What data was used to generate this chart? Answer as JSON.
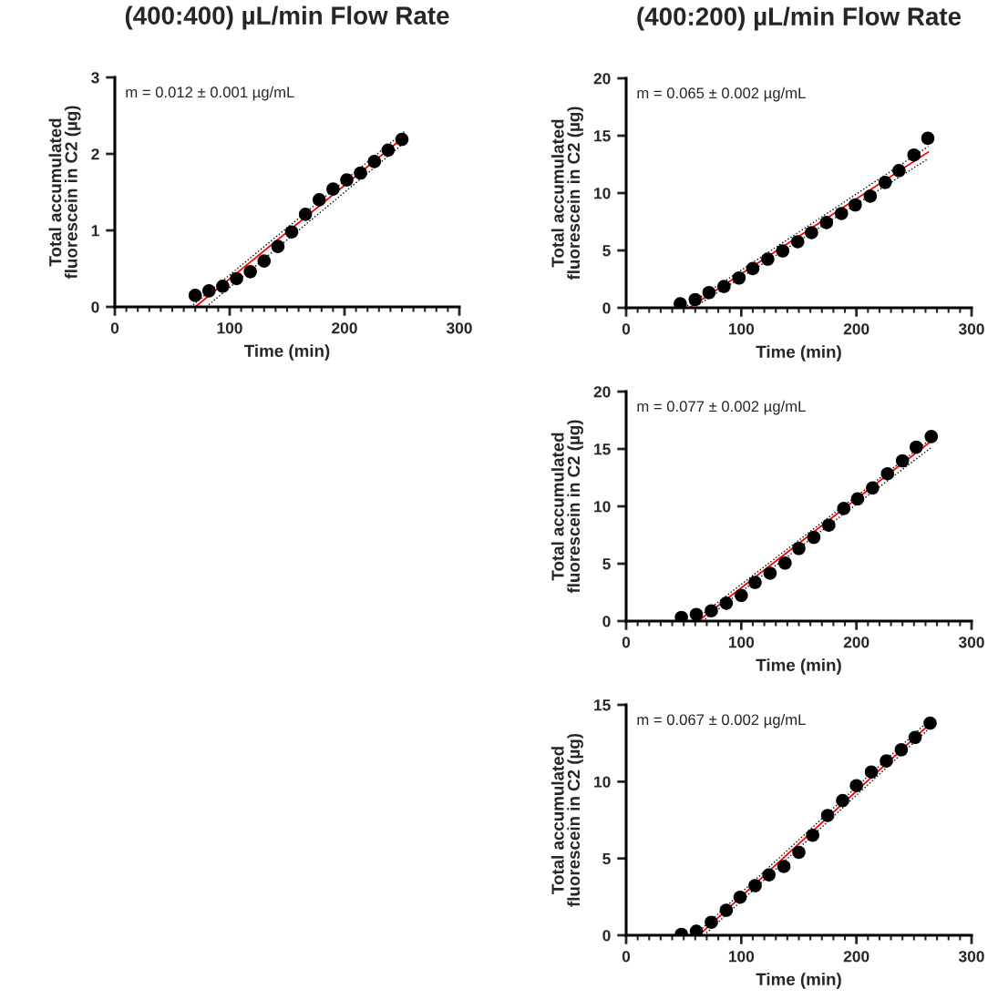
{
  "chart_data": [
    {
      "type": "scatter",
      "title": "(400:400) µL/min Flow Rate",
      "xlabel": "Time (min)",
      "ylabel": "Total accumulated\nfluorescein in C2 (µg)",
      "annotations": [
        "m = 0.012 ± 0.001 µg/mL"
      ],
      "xlim": [
        0,
        300
      ],
      "ylim": [
        0,
        3
      ],
      "xticks": [
        0,
        {
          "value": 10,
          "label": null
        },
        {
          "value": 20,
          "label": null
        },
        {
          "value": 30,
          "label": null
        },
        {
          "value": 40,
          "label": null
        },
        {
          "value": 50,
          "label": null
        },
        {
          "value": 60,
          "label": null
        },
        {
          "value": 70,
          "label": null
        },
        {
          "value": 80,
          "label": null
        },
        {
          "value": 90,
          "label": null
        },
        100,
        {
          "value": 110,
          "label": null
        },
        {
          "value": 120,
          "label": null
        },
        {
          "value": 130,
          "label": null
        },
        {
          "value": 140,
          "label": null
        },
        {
          "value": 150,
          "label": null
        },
        {
          "value": 160,
          "label": null
        },
        {
          "value": 170,
          "label": null
        },
        {
          "value": 180,
          "label": null
        },
        {
          "value": 190,
          "label": null
        },
        200,
        {
          "value": 210,
          "label": null
        },
        {
          "value": 220,
          "label": null
        },
        {
          "value": 230,
          "label": null
        },
        {
          "value": 240,
          "label": null
        },
        {
          "value": 250,
          "label": null
        },
        {
          "value": 260,
          "label": null
        },
        {
          "value": 270,
          "label": null
        },
        {
          "value": 280,
          "label": null
        },
        {
          "value": 290,
          "label": null
        },
        300
      ],
      "yticks": [
        0,
        1,
        2,
        3
      ],
      "grid": false,
      "legend": false,
      "series": [
        {
          "type": "line",
          "color": "#000000",
          "line_style": "dotted",
          "x": [
            66,
            252
          ],
          "values": [
            0,
            2.29
          ]
        },
        {
          "type": "line",
          "color": "#000000",
          "line_style": "dotted",
          "x": [
            79.5,
            250
          ],
          "values": [
            0,
            2.12
          ]
        },
        {
          "type": "line",
          "color": "#ff0000",
          "line_style": "solid",
          "x": [
            70,
            250
          ],
          "values": [
            0,
            2.2
          ]
        },
        {
          "color": "#000000",
          "marker": "circle",
          "x": [
            70,
            82,
            94,
            106,
            118,
            130,
            142,
            154,
            166,
            178,
            190,
            202,
            214,
            226,
            238,
            250
          ],
          "values": [
            0.15,
            0.21,
            0.27,
            0.37,
            0.46,
            0.6,
            0.79,
            0.98,
            1.21,
            1.4,
            1.54,
            1.66,
            1.75,
            1.9,
            2.05,
            2.19
          ]
        }
      ]
    },
    {
      "type": "scatter",
      "title": "(400:200) µL/min Flow Rate",
      "xlabel": "Time (min)",
      "ylabel": "Total accumulated\nfluorescein in C2 (µg)",
      "annotations": [
        "m = 0.065 ± 0.002 µg/mL"
      ],
      "xlim": [
        0,
        300
      ],
      "ylim": [
        0,
        20
      ],
      "xticks": [
        0,
        {
          "value": 10,
          "label": null
        },
        {
          "value": 20,
          "label": null
        },
        {
          "value": 30,
          "label": null
        },
        {
          "value": 40,
          "label": null
        },
        {
          "value": 50,
          "label": null
        },
        {
          "value": 60,
          "label": null
        },
        {
          "value": 70,
          "label": null
        },
        {
          "value": 80,
          "label": null
        },
        {
          "value": 90,
          "label": null
        },
        100,
        {
          "value": 110,
          "label": null
        },
        {
          "value": 120,
          "label": null
        },
        {
          "value": 130,
          "label": null
        },
        {
          "value": 140,
          "label": null
        },
        {
          "value": 150,
          "label": null
        },
        {
          "value": 160,
          "label": null
        },
        {
          "value": 170,
          "label": null
        },
        {
          "value": 180,
          "label": null
        },
        {
          "value": 190,
          "label": null
        },
        200,
        {
          "value": 210,
          "label": null
        },
        {
          "value": 220,
          "label": null
        },
        {
          "value": 230,
          "label": null
        },
        {
          "value": 240,
          "label": null
        },
        {
          "value": 250,
          "label": null
        },
        {
          "value": 260,
          "label": null
        },
        {
          "value": 270,
          "label": null
        },
        {
          "value": 280,
          "label": null
        },
        {
          "value": 290,
          "label": null
        },
        300
      ],
      "yticks": [
        0,
        5,
        10,
        15,
        20
      ],
      "grid": false,
      "legend": false,
      "series": [
        {
          "type": "line",
          "color": "#000000",
          "line_style": "dotted",
          "x": [
            50.5,
            262.4
          ],
          "values": [
            0,
            14.06
          ]
        },
        {
          "type": "line",
          "color": "#000000",
          "line_style": "dotted",
          "x": [
            58.4,
            262.4
          ],
          "values": [
            0,
            13.0
          ]
        },
        {
          "type": "line",
          "color": "#ff0000",
          "line_style": "solid",
          "x": [
            54.7,
            262.4
          ],
          "values": [
            0,
            13.58
          ]
        },
        {
          "color": "#000000",
          "marker": "circle",
          "x": [
            47,
            60,
            72,
            85,
            98,
            110,
            123,
            136,
            149,
            161,
            174,
            187,
            199,
            212,
            225,
            237,
            250,
            262
          ],
          "values": [
            0.35,
            0.72,
            1.33,
            1.86,
            2.6,
            3.42,
            4.24,
            4.96,
            5.76,
            6.55,
            7.43,
            8.22,
            8.97,
            9.73,
            10.93,
            11.96,
            13.32,
            14.77
          ]
        }
      ]
    },
    {
      "type": "scatter",
      "xlabel": "Time (min)",
      "ylabel": "Total accumulated\nfluorescein in C2 (µg)",
      "annotations": [
        "m = 0.077 ± 0.002 µg/mL"
      ],
      "xlim": [
        0,
        300
      ],
      "ylim": [
        0,
        20
      ],
      "xticks": [
        0,
        {
          "value": 10,
          "label": null
        },
        {
          "value": 20,
          "label": null
        },
        {
          "value": 30,
          "label": null
        },
        {
          "value": 40,
          "label": null
        },
        {
          "value": 50,
          "label": null
        },
        {
          "value": 60,
          "label": null
        },
        {
          "value": 70,
          "label": null
        },
        {
          "value": 80,
          "label": null
        },
        {
          "value": 90,
          "label": null
        },
        100,
        {
          "value": 110,
          "label": null
        },
        {
          "value": 120,
          "label": null
        },
        {
          "value": 130,
          "label": null
        },
        {
          "value": 140,
          "label": null
        },
        {
          "value": 150,
          "label": null
        },
        {
          "value": 160,
          "label": null
        },
        {
          "value": 170,
          "label": null
        },
        {
          "value": 180,
          "label": null
        },
        {
          "value": 190,
          "label": null
        },
        200,
        {
          "value": 210,
          "label": null
        },
        {
          "value": 220,
          "label": null
        },
        {
          "value": 230,
          "label": null
        },
        {
          "value": 240,
          "label": null
        },
        {
          "value": 250,
          "label": null
        },
        {
          "value": 260,
          "label": null
        },
        {
          "value": 270,
          "label": null
        },
        {
          "value": 280,
          "label": null
        },
        {
          "value": 290,
          "label": null
        },
        300
      ],
      "yticks": [
        0,
        5,
        10,
        15,
        20
      ],
      "grid": false,
      "legend": false,
      "series": [
        {
          "type": "line",
          "color": "#000000",
          "line_style": "dotted",
          "x": [
            58.4,
            264.7
          ],
          "values": [
            0,
            15.87
          ]
        },
        {
          "type": "line",
          "color": "#000000",
          "line_style": "dotted",
          "x": [
            66.3,
            264.7
          ],
          "values": [
            0,
            15.1
          ]
        },
        {
          "type": "line",
          "color": "#ff0000",
          "line_style": "solid",
          "x": [
            62.6,
            264.7
          ],
          "values": [
            0,
            15.66
          ]
        },
        {
          "color": "#000000",
          "marker": "circle",
          "x": [
            48,
            61,
            74,
            87,
            100,
            112,
            125,
            138,
            150,
            163,
            176,
            189,
            201,
            214,
            227,
            240,
            252,
            265
          ],
          "values": [
            0.32,
            0.58,
            0.9,
            1.56,
            2.24,
            3.37,
            4.17,
            5.06,
            6.33,
            7.3,
            8.36,
            9.81,
            10.65,
            11.6,
            12.84,
            13.97,
            15.16,
            16.08
          ]
        }
      ]
    },
    {
      "type": "scatter",
      "xlabel": "Time (min)",
      "ylabel": "Total accumulated\nfluorescein in C2 (µg)",
      "annotations": [
        "m = 0.067 ± 0.002 µg/mL"
      ],
      "xlim": [
        0,
        300
      ],
      "ylim": [
        0,
        15
      ],
      "xticks": [
        0,
        {
          "value": 10,
          "label": null
        },
        {
          "value": 20,
          "label": null
        },
        {
          "value": 30,
          "label": null
        },
        {
          "value": 40,
          "label": null
        },
        {
          "value": 50,
          "label": null
        },
        {
          "value": 60,
          "label": null
        },
        {
          "value": 70,
          "label": null
        },
        {
          "value": 80,
          "label": null
        },
        {
          "value": 90,
          "label": null
        },
        100,
        {
          "value": 110,
          "label": null
        },
        {
          "value": 120,
          "label": null
        },
        {
          "value": 130,
          "label": null
        },
        {
          "value": 140,
          "label": null
        },
        {
          "value": 150,
          "label": null
        },
        {
          "value": 160,
          "label": null
        },
        {
          "value": 170,
          "label": null
        },
        {
          "value": 180,
          "label": null
        },
        {
          "value": 190,
          "label": null
        },
        200,
        {
          "value": 210,
          "label": null
        },
        {
          "value": 220,
          "label": null
        },
        {
          "value": 230,
          "label": null
        },
        {
          "value": 240,
          "label": null
        },
        {
          "value": 250,
          "label": null
        },
        {
          "value": 260,
          "label": null
        },
        {
          "value": 270,
          "label": null
        },
        {
          "value": 280,
          "label": null
        },
        {
          "value": 290,
          "label": null
        },
        300
      ],
      "yticks": [
        0,
        5,
        10,
        15
      ],
      "grid": false,
      "legend": false,
      "series": [
        {
          "type": "line",
          "color": "#000000",
          "line_style": "dotted",
          "x": [
            59.7,
            263.9
          ],
          "values": [
            0,
            14.05
          ]
        },
        {
          "type": "line",
          "color": "#000000",
          "line_style": "dotted",
          "x": [
            67.6,
            263.9
          ],
          "values": [
            0,
            13.51
          ]
        },
        {
          "type": "line",
          "color": "#ff0000",
          "line_style": "solid",
          "x": [
            63.2,
            263.9
          ],
          "values": [
            0,
            13.77
          ]
        },
        {
          "color": "#000000",
          "marker": "circle",
          "x": [
            48,
            61,
            74,
            87,
            99,
            112,
            124,
            137,
            150,
            162,
            175,
            188,
            200,
            213,
            226,
            239,
            251,
            264
          ],
          "values": [
            0.06,
            0.26,
            0.85,
            1.63,
            2.48,
            3.23,
            3.93,
            4.48,
            5.4,
            6.51,
            7.8,
            8.77,
            9.74,
            10.63,
            11.35,
            12.08,
            12.88,
            13.81
          ]
        }
      ]
    }
  ]
}
